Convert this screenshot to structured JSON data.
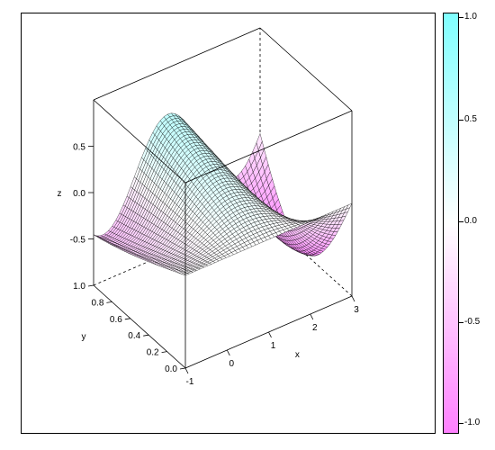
{
  "chart_data": {
    "type": "wireframe-3d-surface",
    "xlabel": "x",
    "ylabel": "y",
    "zlabel": "z",
    "xlim": [
      -1,
      3
    ],
    "ylim": [
      0,
      1
    ],
    "zlim": [
      -1,
      1
    ],
    "x_ticks": [
      "-1",
      "0",
      "1",
      "2",
      "3"
    ],
    "y_ticks": [
      "0.0",
      "0.2",
      "0.4",
      "0.6",
      "0.8",
      "1.0"
    ],
    "z_ticks": [
      "-0.5",
      "0.0",
      "0.5"
    ],
    "surface_description": "z = sin(x*y)*cos(x) over the wireframe grid",
    "grid_resolution": [
      45,
      45
    ],
    "colorkey": {
      "ticks": [
        "1.0",
        "0.5",
        "0.0",
        "-0.5",
        "-1.0"
      ],
      "range": [
        -1,
        1
      ],
      "high_color": "#80ffff",
      "mid_color": "#ffffff",
      "low_color": "#ff80ff"
    }
  }
}
